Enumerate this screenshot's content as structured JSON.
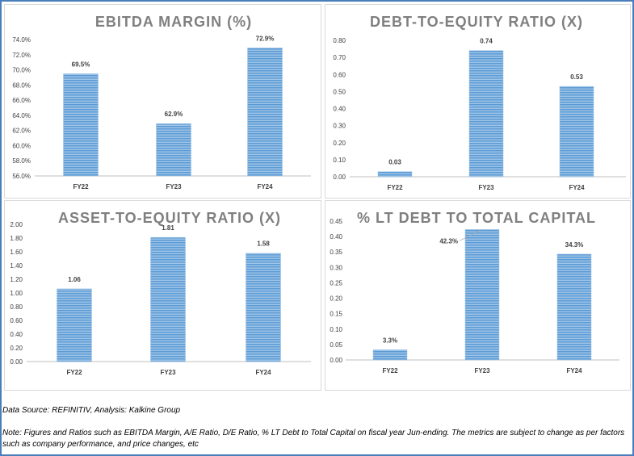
{
  "chart_data": [
    {
      "type": "bar",
      "title": "EBITDA MARGIN (%)",
      "categories": [
        "FY22",
        "FY23",
        "FY24"
      ],
      "values": [
        69.5,
        62.9,
        72.9
      ],
      "data_labels": [
        "69.5%",
        "62.9%",
        "72.9%"
      ],
      "ylim": [
        56,
        74
      ],
      "yticks": [
        "56.0%",
        "58.0%",
        "60.0%",
        "62.0%",
        "64.0%",
        "66.0%",
        "68.0%",
        "70.0%",
        "72.0%",
        "74.0%"
      ],
      "xlabel": "",
      "ylabel": "",
      "color": "#5b9bd5"
    },
    {
      "type": "bar",
      "title": "DEBT-TO-EQUITY RATIO (X)",
      "categories": [
        "FY22",
        "FY23",
        "FY24"
      ],
      "values": [
        0.03,
        0.74,
        0.53
      ],
      "data_labels": [
        "0.03",
        "0.74",
        "0.53"
      ],
      "ylim": [
        0,
        0.8
      ],
      "yticks": [
        "0.00",
        "0.10",
        "0.20",
        "0.30",
        "0.40",
        "0.50",
        "0.60",
        "0.70",
        "0.80"
      ],
      "xlabel": "",
      "ylabel": "",
      "color": "#5b9bd5"
    },
    {
      "type": "bar",
      "title": "ASSET-TO-EQUITY RATIO (X)",
      "categories": [
        "FY22",
        "FY23",
        "FY24"
      ],
      "values": [
        1.06,
        1.81,
        1.58
      ],
      "data_labels": [
        "1.06",
        "1.81",
        "1.58"
      ],
      "ylim": [
        0,
        2
      ],
      "yticks": [
        "0.00",
        "0.20",
        "0.40",
        "0.60",
        "0.80",
        "1.00",
        "1.20",
        "1.40",
        "1.60",
        "1.80",
        "2.00"
      ],
      "xlabel": "",
      "ylabel": "",
      "color": "#5b9bd5"
    },
    {
      "type": "bar",
      "title": "% LT DEBT TO TOTAL CAPITAL",
      "categories": [
        "FY22",
        "FY23",
        "FY24"
      ],
      "values": [
        0.033,
        0.423,
        0.343
      ],
      "data_labels": [
        "3.3%",
        "42.3%",
        "34.3%"
      ],
      "ylim": [
        0,
        0.45
      ],
      "yticks": [
        "0.00",
        "0.05",
        "0.10",
        "0.15",
        "0.20",
        "0.25",
        "0.30",
        "0.35",
        "0.40",
        "0.45"
      ],
      "xlabel": "",
      "ylabel": "",
      "color": "#5b9bd5"
    }
  ],
  "footer": {
    "source": "Data Source: REFINITIV, Analysis: Kalkine Group",
    "note": "Note: Figures and Ratios such as EBITDA Margin, A/E Ratio, D/E Ratio, % LT Debt to Total Capital on fiscal year Jun-ending. The metrics are subject to change as per factors such as company performance, and price changes, etc"
  }
}
